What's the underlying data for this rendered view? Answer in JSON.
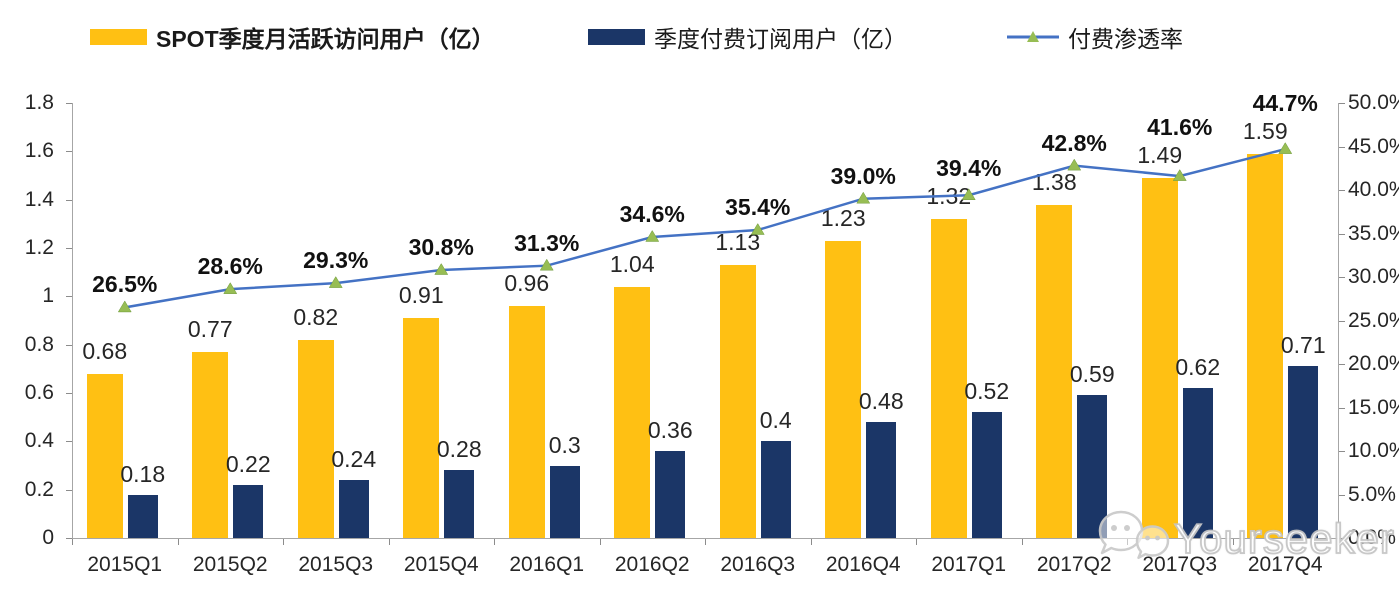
{
  "legend": [
    {
      "label": "SPOT季度月活跃访问用户（亿）",
      "swatch": "bar",
      "color": "#FFC013",
      "bold": true
    },
    {
      "label": "季度付费订阅用户（亿）",
      "swatch": "bar",
      "color": "#1B3667",
      "bold": false
    },
    {
      "label": "付费渗透率",
      "swatch": "line",
      "color": "#4472C4",
      "marker_color": "#97BD54",
      "bold": false
    }
  ],
  "chart_data": {
    "type": "combo",
    "categories": [
      "2015Q1",
      "2015Q2",
      "2015Q3",
      "2015Q4",
      "2016Q1",
      "2016Q2",
      "2016Q3",
      "2016Q4",
      "2017Q1",
      "2017Q2",
      "2017Q3",
      "2017Q4"
    ],
    "series": [
      {
        "name": "SPOT季度月活跃访问用户（亿）",
        "type": "bar",
        "axis": "left",
        "color": "#FFC013",
        "values": [
          0.68,
          0.77,
          0.82,
          0.91,
          0.96,
          1.04,
          1.13,
          1.23,
          1.32,
          1.38,
          1.49,
          1.59
        ],
        "labels": [
          "0.68",
          "0.77",
          "0.82",
          "0.91",
          "0.96",
          "1.04",
          "1.13",
          "1.23",
          "1.32",
          "1.38",
          "1.49",
          "1.59"
        ]
      },
      {
        "name": "季度付费订阅用户（亿）",
        "type": "bar",
        "axis": "left",
        "color": "#1B3667",
        "values": [
          0.18,
          0.22,
          0.24,
          0.28,
          0.3,
          0.36,
          0.4,
          0.48,
          0.52,
          0.59,
          0.62,
          0.71
        ],
        "labels": [
          "0.18",
          "0.22",
          "0.24",
          "0.28",
          "0.3",
          "0.36",
          "0.4",
          "0.48",
          "0.52",
          "0.59",
          "0.62",
          "0.71"
        ]
      },
      {
        "name": "付费渗透率",
        "type": "line",
        "axis": "right",
        "color": "#4472C4",
        "marker": "triangle",
        "marker_color": "#97BD54",
        "values": [
          26.5,
          28.6,
          29.3,
          30.8,
          31.3,
          34.6,
          35.4,
          39.0,
          39.4,
          42.8,
          41.6,
          44.7
        ],
        "labels": [
          "26.5%",
          "28.6%",
          "29.3%",
          "30.8%",
          "31.3%",
          "34.6%",
          "35.4%",
          "39.0%",
          "39.4%",
          "42.8%",
          "41.6%",
          "44.7%"
        ]
      }
    ],
    "axes": {
      "left": {
        "min": 0,
        "max": 1.8,
        "tick_labels": [
          "1.8",
          "1.6",
          "1.4",
          "1.2",
          "1",
          "0.8",
          "0.6",
          "0.4",
          "0.2",
          "0"
        ]
      },
      "right": {
        "min": 0,
        "max": 50,
        "tick_labels": [
          "50.0%",
          "45.0%",
          "40.0%",
          "35.0%",
          "30.0%",
          "25.0%",
          "20.0%",
          "15.0%",
          "10.0%",
          "5.0%",
          "0.0%"
        ]
      }
    },
    "grid": false,
    "legend_position": "top"
  },
  "watermark": {
    "text": "Yourseeker",
    "icon": "wechat-icon"
  },
  "colors": {
    "bar_mau": "#FFC013",
    "bar_subs": "#1B3667",
    "line": "#4472C4",
    "marker": "#97BD54",
    "axis": "#A6A6A6",
    "text": "#262626"
  }
}
